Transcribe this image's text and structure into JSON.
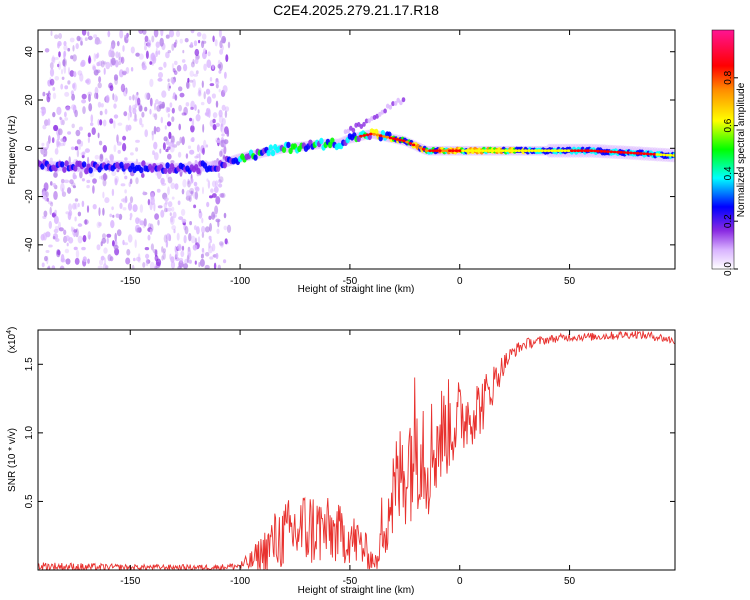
{
  "title": "C2E4.2025.279.21.17.R18",
  "chart_data": [
    {
      "type": "heatmap",
      "xlabel": "Height of straight line (km)",
      "ylabel": "Frequency (Hz)",
      "xlim": [
        -192,
        98
      ],
      "ylim": [
        -50,
        49
      ],
      "xticks": [
        -150,
        -100,
        -50,
        0,
        50
      ],
      "yticks": [
        -40,
        -20,
        0,
        20,
        40
      ],
      "colorbar": {
        "label": "Normalized spectral amplitude",
        "range": [
          0,
          1
        ],
        "ticks": [
          "0.0",
          "0.2",
          "0.4",
          "0.6",
          "0.8"
        ],
        "colors": [
          "#ffffff",
          "#d9b3ff",
          "#8a2be2",
          "#0000ff",
          "#00ffff",
          "#00ff00",
          "#ffff00",
          "#ff8c00",
          "#ff0000",
          "#ff1493"
        ]
      },
      "ridge": {
        "x": [
          -192,
          -170,
          -155,
          -140,
          -120,
          -110,
          -100,
          -90,
          -80,
          -70,
          -60,
          -55,
          -50,
          -45,
          -40,
          -35,
          -30,
          -25,
          -20,
          -15,
          -10,
          0,
          10,
          20,
          40,
          60,
          80,
          98
        ],
        "y": [
          -7,
          -8,
          -7,
          -8,
          -8,
          -7,
          -4,
          -2,
          0,
          1,
          2,
          2,
          4,
          5,
          6,
          5,
          4,
          3,
          1,
          -1,
          -1,
          -1,
          -1,
          -1,
          -1,
          -1,
          -2,
          -3
        ]
      },
      "scatter_region_km": [
        -190,
        -105
      ]
    },
    {
      "type": "line",
      "xlabel": "Height of straight line (km)",
      "ylabel": "SNR (10 * v/v)",
      "yscale_label": "(x10",
      "yscale_exp": "4",
      "xlim": [
        -192,
        98
      ],
      "ylim": [
        0,
        1.75
      ],
      "xticks": [
        -150,
        -100,
        -50,
        0,
        50
      ],
      "yticks": [
        "0.5",
        "1.0",
        "1.5"
      ],
      "series": [
        {
          "name": "SNR",
          "color": "#e8312e",
          "x": [
            -192,
            -170,
            -150,
            -130,
            -110,
            -100,
            -95,
            -90,
            -85,
            -80,
            -75,
            -70,
            -65,
            -60,
            -55,
            -50,
            -45,
            -40,
            -37,
            -35,
            -30,
            -25,
            -20,
            -18,
            -15,
            -10,
            -5,
            0,
            5,
            10,
            15,
            20,
            25,
            30,
            40,
            50,
            60,
            70,
            80,
            90,
            98
          ],
          "values": [
            0.03,
            0.02,
            0.02,
            0.02,
            0.02,
            0.03,
            0.06,
            0.12,
            0.2,
            0.25,
            0.28,
            0.3,
            0.3,
            0.28,
            0.26,
            0.24,
            0.18,
            0.08,
            0.05,
            0.4,
            0.55,
            0.75,
            0.95,
            1.05,
            0.8,
            0.95,
            1.05,
            1.1,
            1.15,
            1.2,
            1.35,
            1.5,
            1.6,
            1.65,
            1.68,
            1.7,
            1.7,
            1.71,
            1.72,
            1.7,
            1.67
          ],
          "noise_halfwidth": [
            0.03,
            0.03,
            0.02,
            0.02,
            0.02,
            0.03,
            0.08,
            0.15,
            0.22,
            0.25,
            0.28,
            0.3,
            0.28,
            0.25,
            0.22,
            0.2,
            0.18,
            0.08,
            0.05,
            0.35,
            0.4,
            0.45,
            0.55,
            0.6,
            0.45,
            0.4,
            0.35,
            0.3,
            0.25,
            0.22,
            0.15,
            0.08,
            0.05,
            0.04,
            0.03,
            0.03,
            0.03,
            0.03,
            0.03,
            0.03,
            0.03
          ]
        }
      ]
    }
  ]
}
